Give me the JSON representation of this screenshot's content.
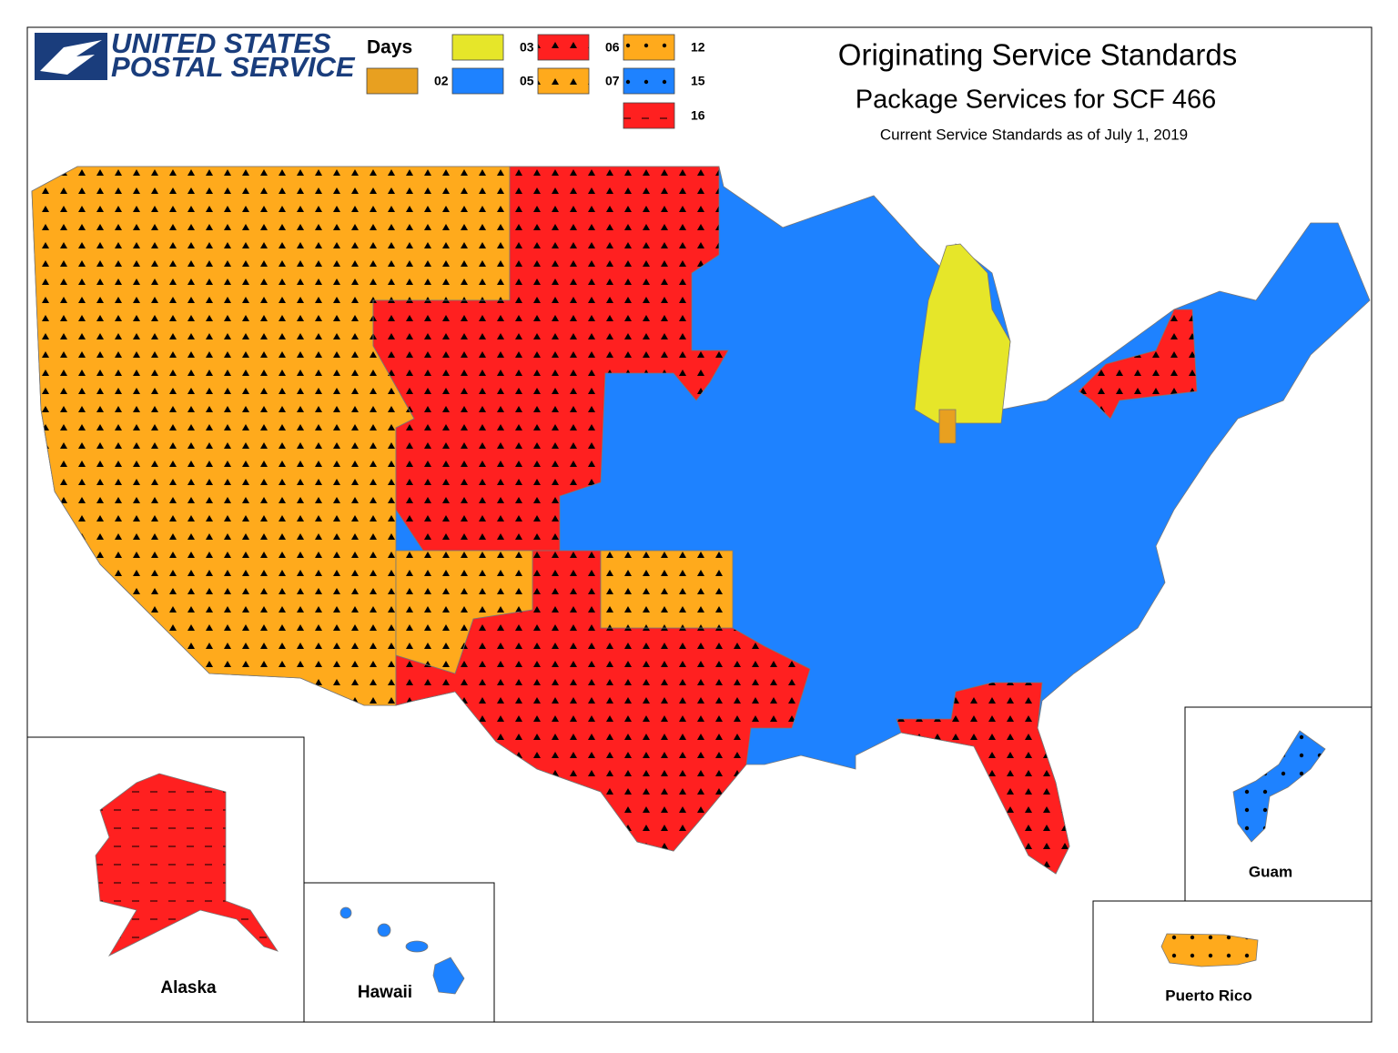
{
  "header": {
    "logo_line1": "UNITED STATES",
    "logo_line2": "POSTAL SERVICE",
    "title": "Originating Service Standards",
    "subtitle": "Package Services for SCF 466",
    "date_note": "Current Service Standards as of July 1, 2019"
  },
  "legend": {
    "title": "Days",
    "items": [
      {
        "label": "02",
        "color": "#e8a020",
        "pattern": "none"
      },
      {
        "label": "03",
        "color": "#e6e629",
        "pattern": "none"
      },
      {
        "label": "05",
        "color": "#1e82ff",
        "pattern": "none"
      },
      {
        "label": "06",
        "color": "#ff2020",
        "pattern": "triangles"
      },
      {
        "label": "07",
        "color": "#ffaa1c",
        "pattern": "triangles"
      },
      {
        "label": "12",
        "color": "#ffaa1c",
        "pattern": "dots"
      },
      {
        "label": "15",
        "color": "#1e82ff",
        "pattern": "dots"
      },
      {
        "label": "16",
        "color": "#ff2020",
        "pattern": "dashes"
      }
    ]
  },
  "insets": {
    "alaska": "Alaska",
    "hawaii": "Hawaii",
    "guam": "Guam",
    "puerto_rico": "Puerto Rico"
  }
}
